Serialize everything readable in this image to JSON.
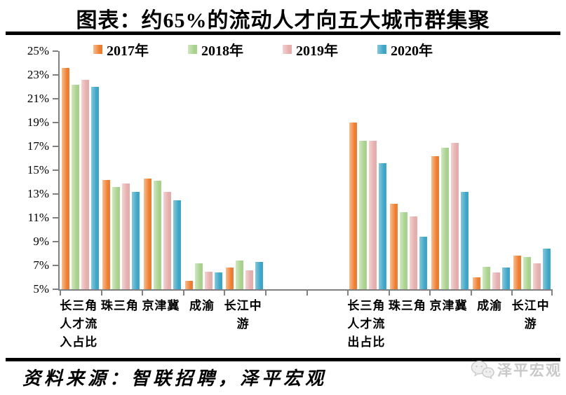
{
  "page": {
    "title": "图表：约65%的流动人才向五大城市群集聚",
    "source": "资料来源：智联招聘，泽平宏观",
    "watermark_text": "泽平宏观"
  },
  "chart_data": {
    "type": "bar",
    "title": "图表：约65%的流动人才向五大城市群集聚",
    "xlabel": "",
    "ylabel": "",
    "ylim": [
      5,
      25
    ],
    "yticks": [
      5,
      7,
      9,
      11,
      13,
      15,
      17,
      19,
      21,
      23,
      25
    ],
    "ytick_suffix": "%",
    "grid": false,
    "legend_position": "top",
    "axis_color": "#808080",
    "slot_count": 12,
    "slot_layout": [
      0,
      1,
      2,
      3,
      4,
      -1,
      -1,
      5,
      6,
      7,
      8,
      9
    ],
    "categories": [
      {
        "lines": [
          "长三角",
          "人才流",
          "入占比"
        ]
      },
      {
        "lines": [
          "珠三角"
        ]
      },
      {
        "lines": [
          "京津冀"
        ]
      },
      {
        "lines": [
          "成渝"
        ]
      },
      {
        "lines": [
          "长江中",
          "游"
        ]
      },
      {
        "lines": [
          "长三角",
          "人才流",
          "出占比"
        ]
      },
      {
        "lines": [
          "珠三角"
        ]
      },
      {
        "lines": [
          "京津冀"
        ]
      },
      {
        "lines": [
          "成渝"
        ]
      },
      {
        "lines": [
          "长江中",
          "游"
        ]
      }
    ],
    "series": [
      {
        "name": "2017年",
        "color": "#ED7D31",
        "color_light": "#F8BE8F",
        "values": [
          23.6,
          14.2,
          14.3,
          5.7,
          6.8,
          19.0,
          12.2,
          16.2,
          6.0,
          7.8
        ]
      },
      {
        "name": "2018年",
        "color": "#A9D18E",
        "color_light": "#CFE7BD",
        "values": [
          22.2,
          13.6,
          14.1,
          7.2,
          7.4,
          17.5,
          11.5,
          16.9,
          6.9,
          7.7
        ]
      },
      {
        "name": "2019年",
        "color": "#E4AEAD",
        "color_light": "#F2D2D1",
        "values": [
          22.6,
          13.9,
          13.2,
          6.5,
          6.6,
          17.5,
          11.1,
          17.3,
          6.4,
          7.2
        ]
      },
      {
        "name": "2020年",
        "color": "#3FA5C6",
        "color_light": "#86C8DC",
        "values": [
          22.0,
          13.2,
          12.5,
          6.4,
          7.3,
          15.6,
          9.4,
          13.2,
          6.8,
          8.4
        ]
      }
    ]
  }
}
